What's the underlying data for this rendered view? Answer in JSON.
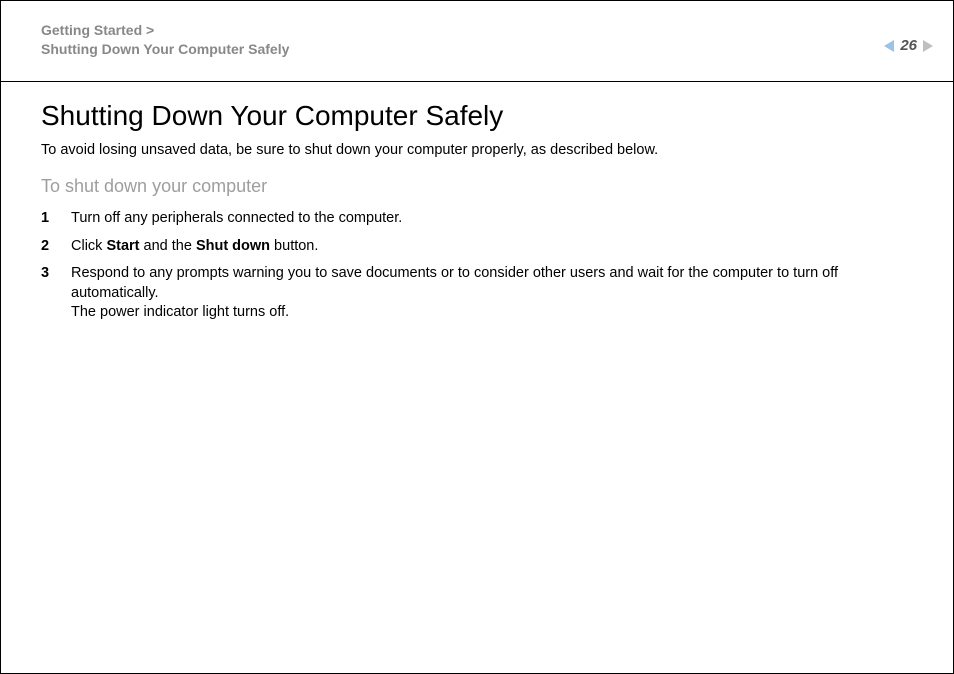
{
  "header": {
    "breadcrumb_line1": "Getting Started >",
    "breadcrumb_line2": "Shutting Down Your Computer Safely",
    "page_number": "26"
  },
  "colors": {
    "breadcrumb_text": "#888888",
    "subheading_text": "#9e9e9e",
    "arrow_prev": "#9cc2e5",
    "arrow_next": "#bfbfbf",
    "body_text": "#000000",
    "background": "#ffffff",
    "rule": "#000000"
  },
  "typography": {
    "title_fontsize": 28,
    "subheading_fontsize": 18,
    "body_fontsize": 14.5,
    "breadcrumb_fontsize": 14,
    "pagenum_fontsize": 15,
    "font_family": "Arial, Helvetica, sans-serif"
  },
  "main": {
    "title": "Shutting Down Your Computer Safely",
    "intro": "To avoid losing unsaved data, be sure to shut down your computer properly, as described below.",
    "subheading": "To shut down your computer",
    "steps": [
      {
        "num": "1",
        "text": "Turn off any peripherals connected to the computer."
      },
      {
        "num": "2",
        "text_prefix": "Click ",
        "bold1": "Start",
        "mid": " and the ",
        "bold2": "Shut down",
        "suffix": " button."
      },
      {
        "num": "3",
        "text": "Respond to any prompts warning you to save documents or to consider other users and wait for the computer to turn off automatically.",
        "extra": "The power indicator light turns off."
      }
    ]
  }
}
